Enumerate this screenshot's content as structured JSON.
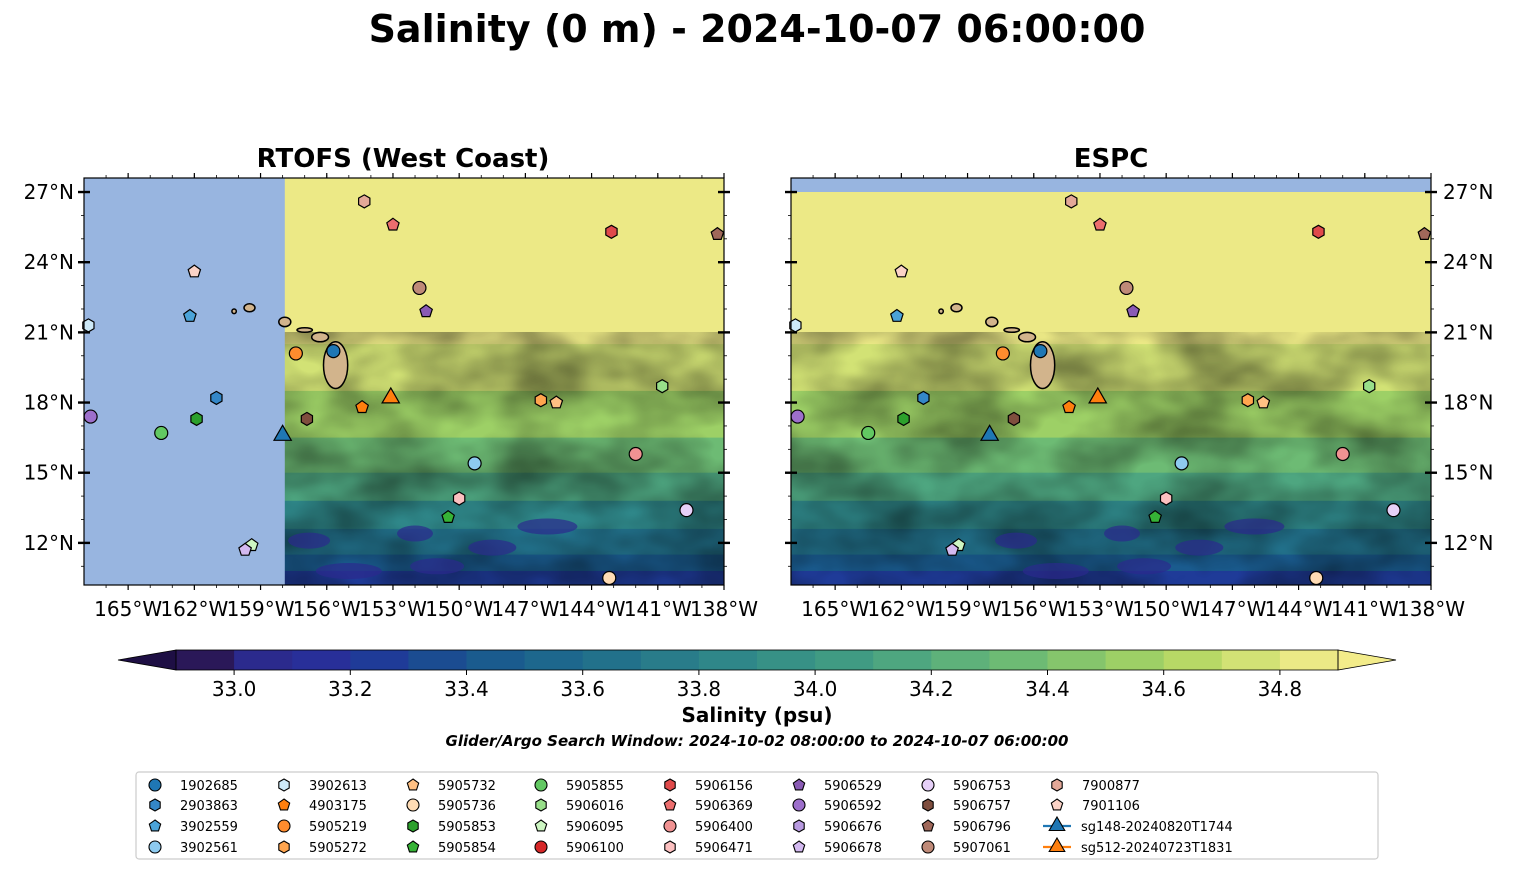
{
  "figure": {
    "suptitle": "Salinity (0 m) - 2024-10-07 06:00:00",
    "search_window": "Glider/Argo Search Window: 2024-10-02 08:00:00 to 2024-10-07 06:00:00"
  },
  "chart_data": [
    {
      "type": "heatmap",
      "title": "RTOFS (West Coast)",
      "variable": "Salinity",
      "x_ticks": [
        "165°W",
        "162°W",
        "159°W",
        "156°W",
        "153°W",
        "150°W",
        "147°W",
        "144°W",
        "141°W",
        "138°W"
      ],
      "y_ticks": [
        "27°N",
        "24°N",
        "21°N",
        "18°N",
        "15°N",
        "12°N"
      ],
      "xlim": [
        -167,
        -138
      ],
      "ylim": [
        10.2,
        27.6
      ],
      "no_data_region": {
        "lon_max": -157.9,
        "color": "#98b5e0"
      },
      "land_color": "#d2b48c"
    },
    {
      "type": "heatmap",
      "title": "ESPC",
      "variable": "Salinity",
      "x_ticks": [
        "165°W",
        "162°W",
        "159°W",
        "156°W",
        "153°W",
        "150°W",
        "147°W",
        "144°W",
        "141°W",
        "138°W"
      ],
      "y_ticks": [
        "27°N",
        "24°N",
        "21°N",
        "18°N",
        "15°N",
        "12°N"
      ],
      "xlim": [
        -167,
        -138
      ],
      "ylim": [
        10.2,
        27.6
      ],
      "no_data_region": {
        "lat_min": 27.0,
        "color": "#98b5e0"
      },
      "land_color": "#d2b48c"
    }
  ],
  "colorbar": {
    "label": "Salinity (psu)",
    "tick_labels": [
      "33.0",
      "33.2",
      "33.4",
      "33.6",
      "33.8",
      "34.0",
      "34.2",
      "34.4",
      "34.6",
      "34.8"
    ],
    "ticks": [
      33.0,
      33.2,
      33.4,
      33.6,
      33.8,
      34.0,
      34.2,
      34.4,
      34.6,
      34.8
    ],
    "min": 32.9,
    "max": 34.9,
    "extend": "both",
    "colors": [
      "#2a1858",
      "#2b2a8d",
      "#282f99",
      "#1f3b98",
      "#1b4c91",
      "#1a5b8e",
      "#1d678d",
      "#22718b",
      "#297c8a",
      "#2f8789",
      "#379186",
      "#409b83",
      "#4ea680",
      "#5eb17a",
      "#6dbb74",
      "#85c56c",
      "#9dd066",
      "#b7d966",
      "#d2e275",
      "#ece986"
    ]
  },
  "observations": {
    "legend_location": "lower center",
    "platforms": [
      {
        "id": "1902685",
        "marker": "circle",
        "color": "#1f77b4",
        "lon": -155.7,
        "lat": 20.2
      },
      {
        "id": "2903863",
        "marker": "hexagon",
        "color": "#3487c8",
        "lon": -161.0,
        "lat": 18.2
      },
      {
        "id": "3902559",
        "marker": "pentagon",
        "color": "#4ba3d8",
        "lon": -162.2,
        "lat": 21.7
      },
      {
        "id": "3902561",
        "marker": "circle",
        "color": "#8ecbf0",
        "lon": -149.3,
        "lat": 15.4
      },
      {
        "id": "3902613",
        "marker": "hexagon",
        "color": "#cde9f8",
        "lon": -166.8,
        "lat": 21.3
      },
      {
        "id": "4903175",
        "marker": "pentagon",
        "color": "#ff7f0e",
        "lon": -154.4,
        "lat": 17.8
      },
      {
        "id": "5905219",
        "marker": "circle",
        "color": "#ff8c2e",
        "lon": -157.4,
        "lat": 20.1
      },
      {
        "id": "5905272",
        "marker": "hexagon",
        "color": "#ffa54f",
        "lon": -146.3,
        "lat": 18.1
      },
      {
        "id": "5905732",
        "marker": "pentagon",
        "color": "#ffc083",
        "lon": -145.6,
        "lat": 18.0
      },
      {
        "id": "5905736",
        "marker": "circle",
        "color": "#ffdcb5",
        "lon": -143.2,
        "lat": 10.5
      },
      {
        "id": "5905853",
        "marker": "hexagon",
        "color": "#2ca02c",
        "lon": -161.9,
        "lat": 17.3
      },
      {
        "id": "5905854",
        "marker": "pentagon",
        "color": "#36b336",
        "lon": -150.5,
        "lat": 13.1
      },
      {
        "id": "5905855",
        "marker": "circle",
        "color": "#62c862",
        "lon": -163.5,
        "lat": 16.7
      },
      {
        "id": "5906016",
        "marker": "hexagon",
        "color": "#98df8a",
        "lon": -140.8,
        "lat": 18.7
      },
      {
        "id": "5906095",
        "marker": "pentagon",
        "color": "#cdf6c2",
        "lon": -159.4,
        "lat": 11.9
      },
      {
        "id": "5906100",
        "marker": "circle",
        "color": "#d62728",
        "lon": null,
        "lat": null
      },
      {
        "id": "5906156",
        "marker": "hexagon",
        "color": "#e04a4b",
        "lon": -143.1,
        "lat": 25.3
      },
      {
        "id": "5906369",
        "marker": "pentagon",
        "color": "#ec6e6e",
        "lon": -153.0,
        "lat": 25.6
      },
      {
        "id": "5906400",
        "marker": "circle",
        "color": "#f09292",
        "lon": -142.0,
        "lat": 15.8
      },
      {
        "id": "5906471",
        "marker": "hexagon",
        "color": "#fcc0c0",
        "lon": -150.0,
        "lat": 13.9
      },
      {
        "id": "5906529",
        "marker": "pentagon",
        "color": "#8a5bb5",
        "lon": -151.5,
        "lat": 21.9
      },
      {
        "id": "5906592",
        "marker": "circle",
        "color": "#9d6fcb",
        "lon": -166.7,
        "lat": 17.4
      },
      {
        "id": "5906676",
        "marker": "hexagon",
        "color": "#b89ae0",
        "lon": null,
        "lat": null
      },
      {
        "id": "5906678",
        "marker": "pentagon",
        "color": "#d3b9f0",
        "lon": -159.7,
        "lat": 11.7
      },
      {
        "id": "5906753",
        "marker": "circle",
        "color": "#e6d0f8",
        "lon": -139.7,
        "lat": 13.4
      },
      {
        "id": "5906757",
        "marker": "hexagon",
        "color": "#7f4e3e",
        "lon": -156.9,
        "lat": 17.3
      },
      {
        "id": "5906796",
        "marker": "pentagon",
        "color": "#a0685a",
        "lon": -138.3,
        "lat": 25.2
      },
      {
        "id": "5907061",
        "marker": "circle",
        "color": "#bf8a78",
        "lon": -151.8,
        "lat": 22.9
      },
      {
        "id": "7900877",
        "marker": "hexagon",
        "color": "#e3a898",
        "lon": -154.3,
        "lat": 26.6
      },
      {
        "id": "7901106",
        "marker": "pentagon",
        "color": "#fbd3c7",
        "lon": -162.0,
        "lat": 23.6
      },
      {
        "id": "sg148-20240820T1744",
        "marker": "triangle",
        "color": "#1f77b4",
        "line_color": "#1f77b4",
        "lon": -158.0,
        "lat": 16.6
      },
      {
        "id": "sg512-20240723T1831",
        "marker": "triangle",
        "color": "#ff7f0e",
        "line_color": "#ff7f0e",
        "lon": -153.1,
        "lat": 18.2
      }
    ]
  }
}
